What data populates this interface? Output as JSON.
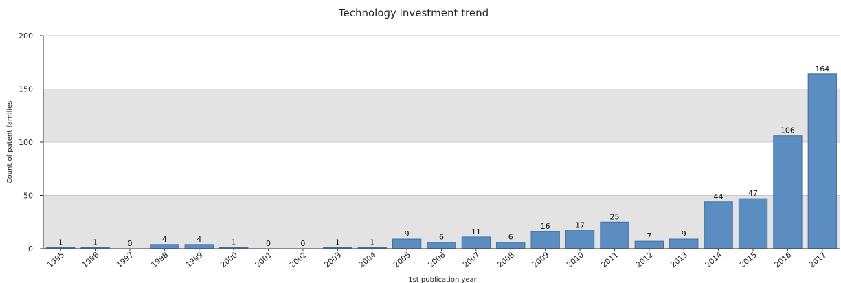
{
  "chart_data": {
    "type": "bar",
    "title": "Technology investment trend",
    "xlabel": "1st publication year",
    "ylabel": "Count of patent families",
    "categories": [
      "1995",
      "1996",
      "1997",
      "1998",
      "1999",
      "2000",
      "2001",
      "2002",
      "2003",
      "2004",
      "2005",
      "2006",
      "2007",
      "2008",
      "2009",
      "2010",
      "2011",
      "2012",
      "2013",
      "2014",
      "2015",
      "2016",
      "2017"
    ],
    "values": [
      1,
      1,
      0,
      4,
      4,
      1,
      0,
      0,
      1,
      1,
      9,
      6,
      11,
      6,
      16,
      17,
      25,
      7,
      9,
      44,
      47,
      106,
      164
    ],
    "ylim": [
      0,
      200
    ],
    "yticks": [
      0,
      50,
      100,
      150,
      200
    ],
    "grid": "alternating horizontal bands",
    "colors": {
      "bar": "#5b8dc0",
      "bar_edge": "#3f6f9f",
      "band": "#e3e3e3",
      "axis": "#333333",
      "gridline": "#c8c8c8"
    }
  }
}
